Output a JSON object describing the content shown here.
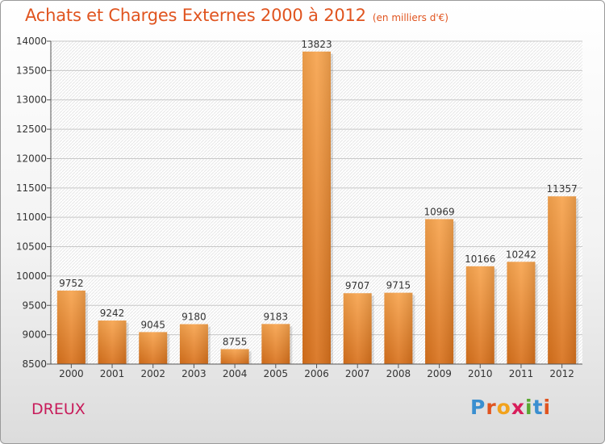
{
  "chart_data": {
    "type": "bar",
    "title": "Achats et Charges Externes 2000 à 2012",
    "subtitle": "(en milliers d'€)",
    "categories": [
      "2000",
      "2001",
      "2002",
      "2003",
      "2004",
      "2005",
      "2006",
      "2007",
      "2008",
      "2009",
      "2010",
      "2011",
      "2012"
    ],
    "values": [
      9752,
      9242,
      9045,
      9180,
      8755,
      9183,
      13823,
      9707,
      9715,
      10969,
      10166,
      10242,
      11357
    ],
    "ylim": [
      8500,
      14000
    ],
    "yticks": [
      8500,
      9000,
      9500,
      10000,
      10500,
      11000,
      11500,
      12000,
      12500,
      13000,
      13500,
      14000
    ],
    "grid": true,
    "bar_color": "#f0902e"
  },
  "footer": {
    "location": "DREUX",
    "logo_letters": [
      {
        "ch": "P",
        "color": "#3a8fd0"
      },
      {
        "ch": "r",
        "color": "#e0541f"
      },
      {
        "ch": "o",
        "color": "#f2a21c"
      },
      {
        "ch": "x",
        "color": "#d81e5b"
      },
      {
        "ch": "i",
        "color": "#5aa832"
      },
      {
        "ch": "t",
        "color": "#3a8fd0"
      },
      {
        "ch": "i",
        "color": "#e0541f"
      }
    ]
  }
}
